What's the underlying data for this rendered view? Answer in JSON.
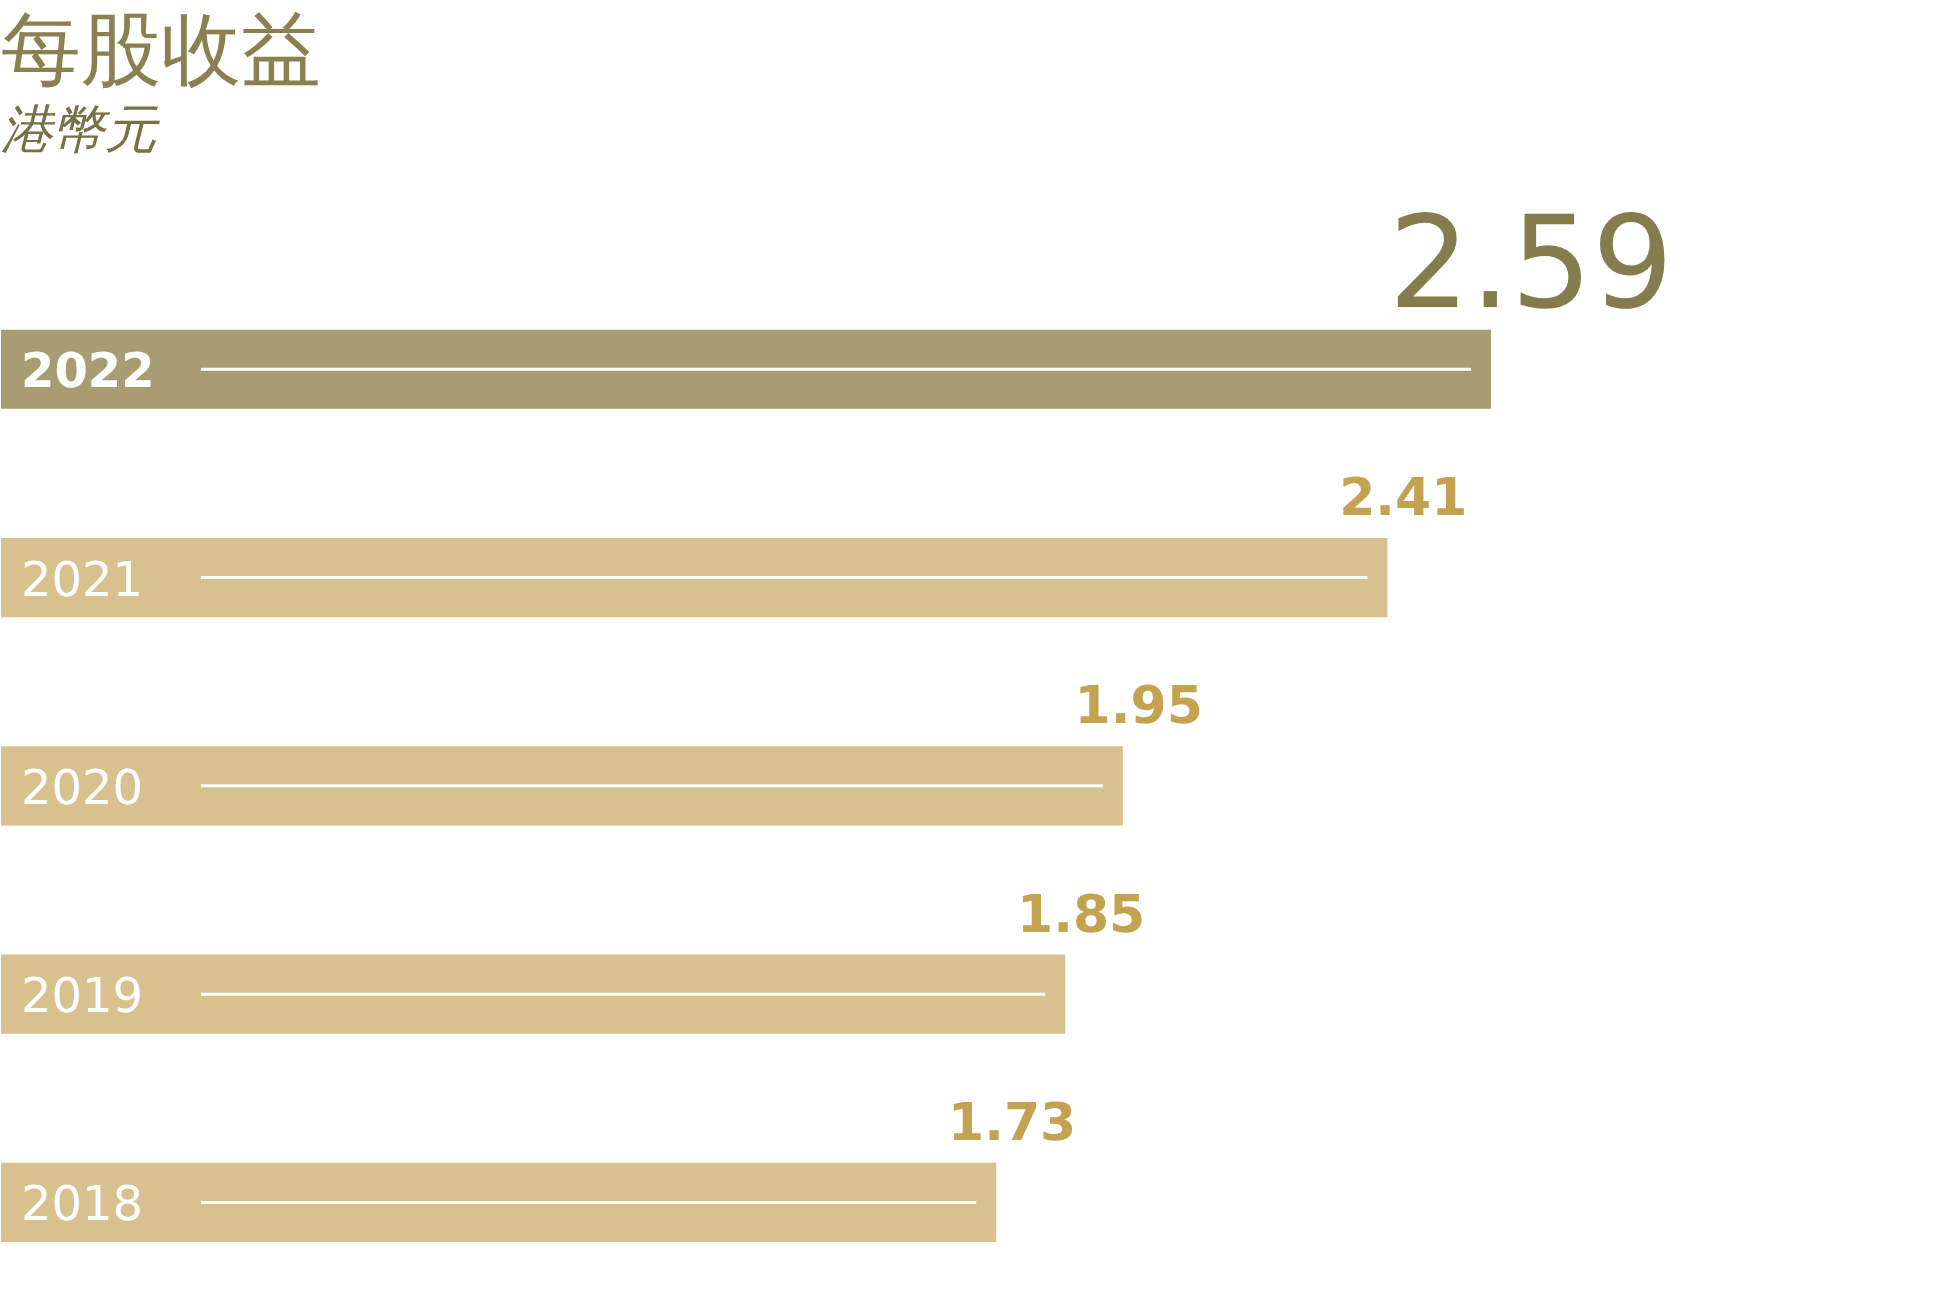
{
  "chart_data": {
    "type": "bar",
    "orientation": "horizontal",
    "title": "每股收益",
    "subtitle": "港幣元",
    "categories": [
      "2022",
      "2021",
      "2020",
      "2019",
      "2018"
    ],
    "values": [
      2.59,
      2.41,
      1.95,
      1.85,
      1.73
    ],
    "colors": [
      "#a89c72",
      "#d9c18f",
      "#d9c18f",
      "#d9c18f",
      "#d9c18f"
    ],
    "data_labels": true
  }
}
